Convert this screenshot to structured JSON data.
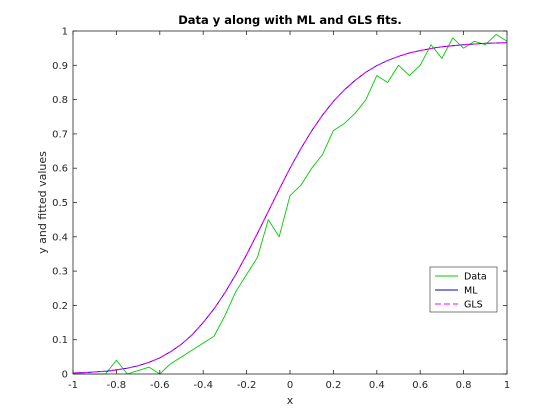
{
  "chart_data": {
    "type": "line",
    "title": "Data y along with ML and GLS fits.",
    "xlabel": "x",
    "ylabel": "y and fitted values",
    "xlim": [
      -1,
      1
    ],
    "ylim": [
      0,
      1
    ],
    "xticks": [
      -1,
      -0.8,
      -0.6,
      -0.4,
      -0.2,
      0,
      0.2,
      0.4,
      0.6,
      0.8,
      1
    ],
    "yticks": [
      0,
      0.1,
      0.2,
      0.3,
      0.4,
      0.5,
      0.6,
      0.7,
      0.8,
      0.9,
      1
    ],
    "xtick_labels": [
      "-1",
      "-0.8",
      "-0.6",
      "-0.4",
      "-0.2",
      "0",
      "0.2",
      "0.4",
      "0.6",
      "0.8",
      "1"
    ],
    "ytick_labels": [
      "0",
      "0.1",
      "0.2",
      "0.3",
      "0.4",
      "0.5",
      "0.6",
      "0.7",
      "0.8",
      "0.9",
      "1"
    ],
    "grid": false,
    "legend_position": "bottom-right",
    "x": [
      -1.0,
      -0.95,
      -0.9,
      -0.85,
      -0.8,
      -0.75,
      -0.7,
      -0.65,
      -0.6,
      -0.55,
      -0.5,
      -0.45,
      -0.4,
      -0.35,
      -0.3,
      -0.25,
      -0.2,
      -0.15,
      -0.1,
      -0.05,
      0.0,
      0.05,
      0.1,
      0.15,
      0.2,
      0.25,
      0.3,
      0.35,
      0.4,
      0.45,
      0.5,
      0.55,
      0.6,
      0.65,
      0.7,
      0.75,
      0.8,
      0.85,
      0.9,
      0.95,
      1.0
    ],
    "series": [
      {
        "name": "Data",
        "color": "#00cc00",
        "style": "solid",
        "values": [
          0.0,
          0.0,
          0.0,
          0.0,
          0.04,
          0.0,
          0.01,
          0.02,
          0.0,
          0.03,
          0.05,
          0.07,
          0.09,
          0.11,
          0.17,
          0.24,
          0.29,
          0.34,
          0.45,
          0.4,
          0.52,
          0.55,
          0.6,
          0.64,
          0.71,
          0.73,
          0.76,
          0.8,
          0.87,
          0.85,
          0.9,
          0.87,
          0.9,
          0.96,
          0.92,
          0.98,
          0.95,
          0.97,
          0.96,
          0.99,
          0.97
        ]
      },
      {
        "name": "ML",
        "color": "#0000cc",
        "style": "solid",
        "values": [
          0.003,
          0.004,
          0.006,
          0.008,
          0.012,
          0.017,
          0.024,
          0.034,
          0.047,
          0.065,
          0.087,
          0.115,
          0.15,
          0.19,
          0.237,
          0.29,
          0.348,
          0.41,
          0.474,
          0.538,
          0.6,
          0.657,
          0.709,
          0.755,
          0.795,
          0.828,
          0.856,
          0.88,
          0.899,
          0.914,
          0.926,
          0.936,
          0.943,
          0.949,
          0.954,
          0.957,
          0.96,
          0.962,
          0.964,
          0.965,
          0.966
        ]
      },
      {
        "name": "GLS",
        "color": "#ff00ff",
        "style": "dashed",
        "values": [
          0.003,
          0.004,
          0.006,
          0.008,
          0.012,
          0.017,
          0.024,
          0.034,
          0.047,
          0.065,
          0.087,
          0.115,
          0.15,
          0.19,
          0.237,
          0.29,
          0.348,
          0.41,
          0.474,
          0.538,
          0.6,
          0.657,
          0.709,
          0.755,
          0.795,
          0.828,
          0.856,
          0.88,
          0.899,
          0.914,
          0.926,
          0.936,
          0.943,
          0.949,
          0.954,
          0.957,
          0.96,
          0.962,
          0.964,
          0.965,
          0.966
        ]
      }
    ]
  }
}
